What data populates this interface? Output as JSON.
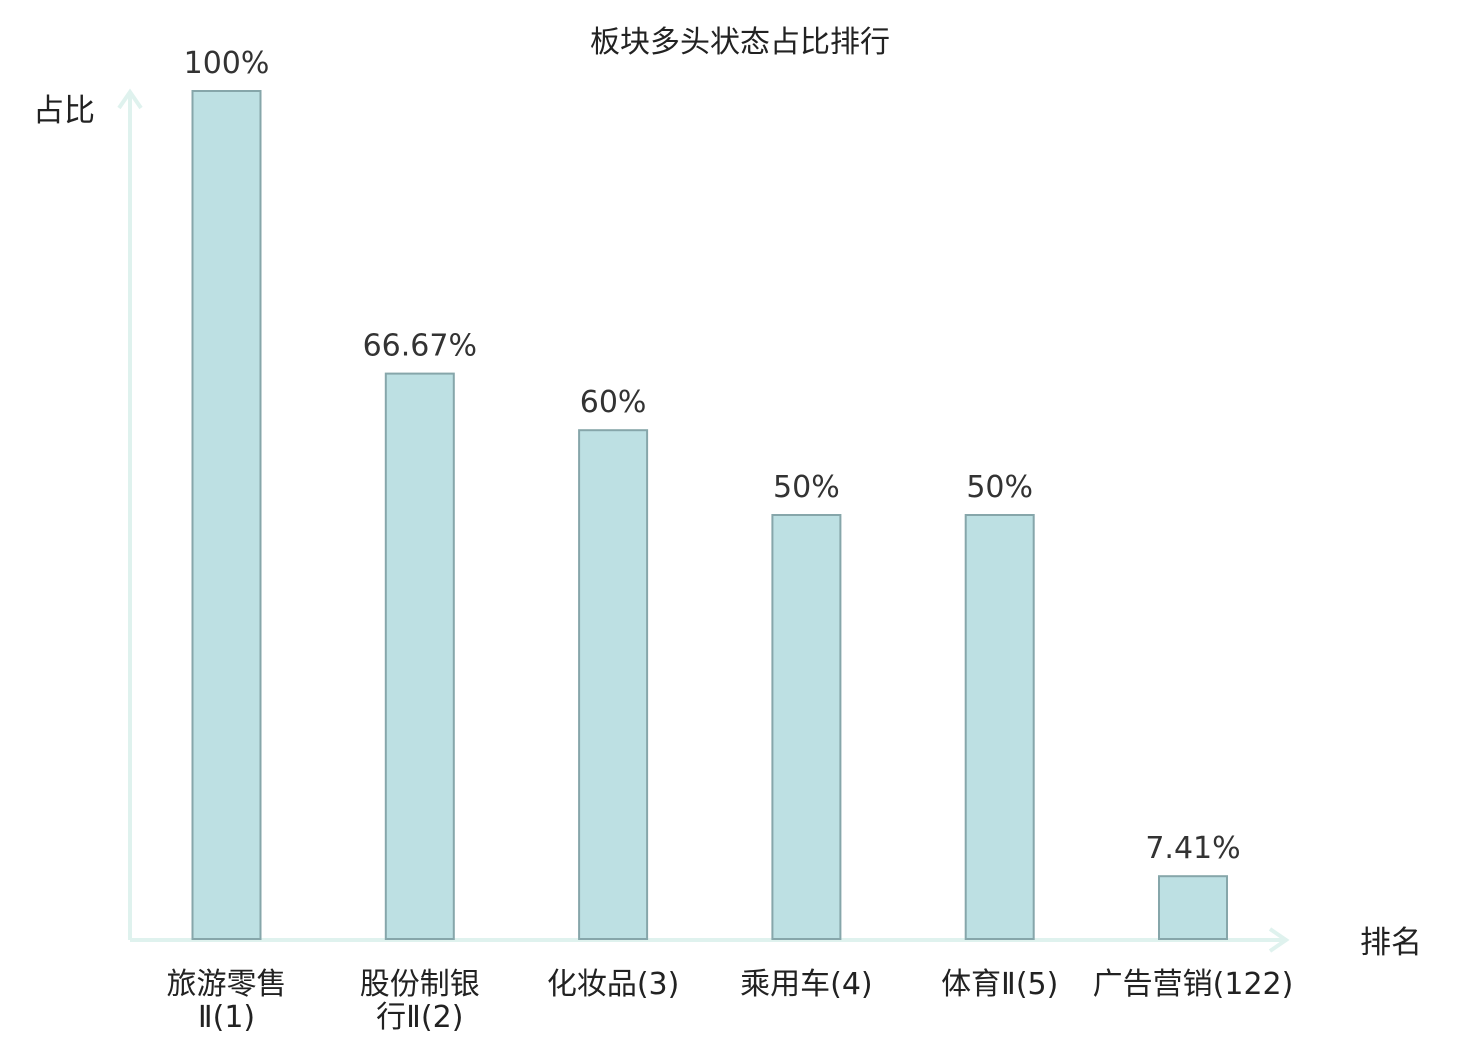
{
  "chart_data": {
    "type": "bar",
    "title": "板块多头状态占比排行",
    "ylabel": "占比",
    "xlabel": "排名",
    "ylim": [
      0,
      100
    ],
    "grid": false,
    "categories": [
      {
        "lines": [
          "旅游零售",
          "Ⅱ(1)"
        ],
        "highlight": false
      },
      {
        "lines": [
          "股份制银",
          "行Ⅱ(2)"
        ],
        "highlight": false
      },
      {
        "lines": [
          "化妆品(3)"
        ],
        "highlight": false
      },
      {
        "lines": [
          "乘用车(4)"
        ],
        "highlight": false
      },
      {
        "lines": [
          "体育Ⅱ(5)"
        ],
        "highlight": false
      },
      {
        "lines": [
          "广告营销(122)"
        ],
        "highlight": true
      }
    ],
    "values": [
      100,
      66.67,
      60,
      50,
      50,
      7.41
    ],
    "data_labels": [
      "100%",
      "66.67%",
      "60%",
      "50%",
      "50%",
      "7.41%"
    ]
  },
  "colors": {
    "bar_fill": "#bde0e3",
    "bar_stroke": "#86a6aa",
    "axis": "#dff2ee",
    "text": "#222222",
    "highlight_text": "#ee2222"
  }
}
